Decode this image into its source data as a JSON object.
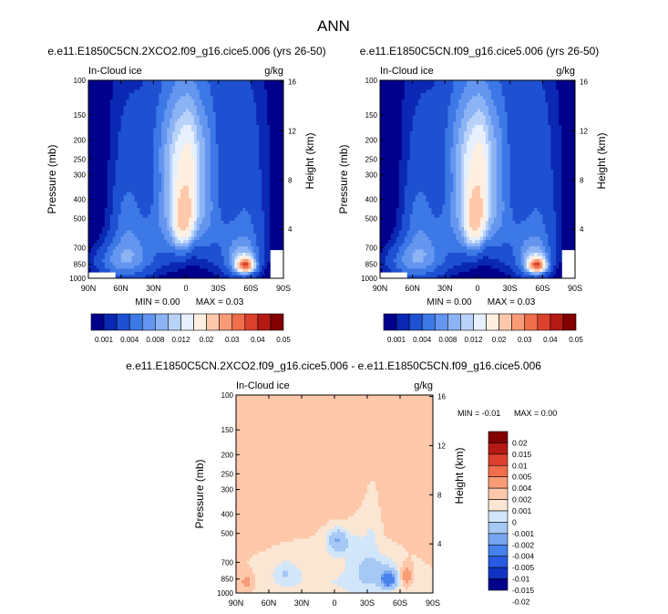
{
  "title": "ANN",
  "colors": {
    "seq": [
      "#00008c",
      "#0a28b4",
      "#1e50d2",
      "#3c78e6",
      "#6496f0",
      "#8cb4f5",
      "#b9d2fa",
      "#e6f0ff",
      "#fff0e1",
      "#ffc8aa",
      "#fa9b78",
      "#f06e4b",
      "#dc412d",
      "#b41914",
      "#820000"
    ],
    "diff": [
      "#00008c",
      "#0f32c3",
      "#285ae1",
      "#4682eb",
      "#78a5f0",
      "#a5c8f5",
      "#d2e6fa",
      "#fae6d2",
      "#ffc8aa",
      "#fa9b78",
      "#f06e4b",
      "#dc412d",
      "#b41914",
      "#820000"
    ]
  },
  "chart_data": [
    {
      "type": "heatmap",
      "title": "e.e11.E1850C5CN.2XCO2.f09_g16.cice5.006 (yrs 26-50)",
      "field_label": "In-Cloud ice",
      "units": "g/kg",
      "ylabel": "Pressure (mb)",
      "y2label": "Height (km)",
      "x_ticks": [
        "90N",
        "60N",
        "30N",
        "0",
        "30S",
        "60S",
        "90S"
      ],
      "y_ticks": [
        "100",
        "150",
        "200",
        "250",
        "300",
        "400",
        "500",
        "700",
        "850",
        "1000"
      ],
      "y2_ticks": [
        "16",
        "12",
        "8",
        "4"
      ],
      "min_text": "MIN =  0.00",
      "max_text": "MAX =  0.03",
      "colorbar_labels": [
        "0.001",
        "0.004",
        "0.008",
        "0.012",
        "0.02",
        "0.03",
        "0.04",
        "0.05"
      ],
      "levels": [
        0.001,
        0.002,
        0.004,
        0.006,
        0.008,
        0.01,
        0.012,
        0.015,
        0.02,
        0.025,
        0.03,
        0.035,
        0.04,
        0.05
      ],
      "features": [
        {
          "lat": 0,
          "p": 520,
          "amp": 0.012,
          "slat": 6,
          "sp": 110
        },
        {
          "lat": -3,
          "p": 330,
          "amp": 0.009,
          "slat": 5,
          "sp": 130
        },
        {
          "lat": 6,
          "p": 450,
          "amp": 0.009,
          "slat": 5,
          "sp": 170
        },
        {
          "lat": 15,
          "p": 420,
          "amp": 0.005,
          "slat": 8,
          "sp": 200
        },
        {
          "lat": -15,
          "p": 400,
          "amp": 0.005,
          "slat": 8,
          "sp": 190
        },
        {
          "lat": 2,
          "p": 220,
          "amp": 0.004,
          "slat": 15,
          "sp": 80
        },
        {
          "lat": 0,
          "p": 400,
          "amp": 0.003,
          "slat": 35,
          "sp": 260
        },
        {
          "lat": -55,
          "p": 860,
          "amp": 0.03,
          "slat": 5,
          "sp": 45
        },
        {
          "lat": -52,
          "p": 800,
          "amp": 0.008,
          "slat": 10,
          "sp": 120
        },
        {
          "lat": -58,
          "p": 500,
          "amp": 0.003,
          "slat": 12,
          "sp": 280
        },
        {
          "lat": 55,
          "p": 540,
          "amp": 0.004,
          "slat": 10,
          "sp": 230
        },
        {
          "lat": 65,
          "p": 820,
          "amp": 0.005,
          "slat": 14,
          "sp": 120
        },
        {
          "lat": 45,
          "p": 800,
          "amp": 0.003,
          "slat": 12,
          "sp": 140
        },
        {
          "lat": 30,
          "p": 650,
          "amp": 0.002,
          "slat": 12,
          "sp": 200
        },
        {
          "lat": -32,
          "p": 650,
          "amp": 0.002,
          "slat": 12,
          "sp": 200
        },
        {
          "lat": 0,
          "p": 150,
          "amp": 0.0015,
          "slat": 45,
          "sp": 80
        }
      ]
    },
    {
      "type": "heatmap",
      "title": "e.e11.E1850C5CN.f09_g16.cice5.006 (yrs 26-50)",
      "field_label": "In-Cloud ice",
      "units": "g/kg",
      "ylabel": "Pressure (mb)",
      "y2label": "Height (km)",
      "x_ticks": [
        "90N",
        "60N",
        "30N",
        "0",
        "30S",
        "60S",
        "90S"
      ],
      "y_ticks": [
        "100",
        "150",
        "200",
        "250",
        "300",
        "400",
        "500",
        "700",
        "850",
        "1000"
      ],
      "y2_ticks": [
        "16",
        "12",
        "8",
        "4"
      ],
      "min_text": "MIN =  0.00",
      "max_text": "MAX =  0.03",
      "colorbar_labels": [
        "0.001",
        "0.004",
        "0.008",
        "0.012",
        "0.02",
        "0.03",
        "0.04",
        "0.05"
      ],
      "levels": [
        0.001,
        0.002,
        0.004,
        0.006,
        0.008,
        0.01,
        0.012,
        0.015,
        0.02,
        0.025,
        0.03,
        0.035,
        0.04,
        0.05
      ],
      "features": [
        {
          "lat": 0,
          "p": 520,
          "amp": 0.012,
          "slat": 6,
          "sp": 110
        },
        {
          "lat": -3,
          "p": 330,
          "amp": 0.009,
          "slat": 5,
          "sp": 130
        },
        {
          "lat": 6,
          "p": 450,
          "amp": 0.009,
          "slat": 5,
          "sp": 170
        },
        {
          "lat": 15,
          "p": 420,
          "amp": 0.005,
          "slat": 8,
          "sp": 200
        },
        {
          "lat": -15,
          "p": 400,
          "amp": 0.005,
          "slat": 8,
          "sp": 190
        },
        {
          "lat": 2,
          "p": 220,
          "amp": 0.004,
          "slat": 15,
          "sp": 80
        },
        {
          "lat": 0,
          "p": 400,
          "amp": 0.003,
          "slat": 35,
          "sp": 260
        },
        {
          "lat": -55,
          "p": 860,
          "amp": 0.03,
          "slat": 5,
          "sp": 45
        },
        {
          "lat": -52,
          "p": 800,
          "amp": 0.008,
          "slat": 10,
          "sp": 120
        },
        {
          "lat": -58,
          "p": 500,
          "amp": 0.003,
          "slat": 12,
          "sp": 280
        },
        {
          "lat": 55,
          "p": 540,
          "amp": 0.004,
          "slat": 10,
          "sp": 230
        },
        {
          "lat": 65,
          "p": 820,
          "amp": 0.005,
          "slat": 14,
          "sp": 120
        },
        {
          "lat": 45,
          "p": 800,
          "amp": 0.003,
          "slat": 12,
          "sp": 140
        },
        {
          "lat": 30,
          "p": 650,
          "amp": 0.002,
          "slat": 12,
          "sp": 200
        },
        {
          "lat": -32,
          "p": 650,
          "amp": 0.002,
          "slat": 12,
          "sp": 200
        },
        {
          "lat": 0,
          "p": 150,
          "amp": 0.0015,
          "slat": 45,
          "sp": 80
        }
      ]
    },
    {
      "type": "heatmap",
      "title": "e.e11.E1850C5CN.2XCO2.f09_g16.cice5.006 - e.e11.E1850C5CN.f09_g16.cice5.006",
      "field_label": "In-Cloud ice",
      "units": "g/kg",
      "ylabel": "Pressure (mb)",
      "y2label": "Height (km)",
      "x_ticks": [
        "90N",
        "60N",
        "30N",
        "0",
        "30S",
        "60S",
        "90S"
      ],
      "y_ticks": [
        "100",
        "150",
        "200",
        "250",
        "300",
        "400",
        "500",
        "700",
        "850",
        "1000"
      ],
      "y2_ticks": [
        "16",
        "12",
        "8",
        "4"
      ],
      "min_text": "MIN =  -0.01",
      "max_text": "MAX =  0.00",
      "colorbar_labels": [
        "0.02",
        "0.015",
        "0.01",
        "0.005",
        "0.004",
        "0.002",
        "0.001",
        "0",
        "-0.001",
        "-0.002",
        "-0.004",
        "-0.005",
        "-0.01",
        "-0.015",
        "-0.02"
      ],
      "levels": [
        -0.02,
        -0.015,
        -0.01,
        -0.005,
        -0.004,
        -0.002,
        -0.001,
        0,
        0.001,
        0.002,
        0.004,
        0.005,
        0.01,
        0.015,
        0.02
      ],
      "baseline": 0.0004,
      "features": [
        {
          "lat": 0,
          "p": 880,
          "amp": -0.0014,
          "slat": 60,
          "sp": 230
        },
        {
          "lat": -5,
          "p": 560,
          "amp": -0.0022,
          "slat": 9,
          "sp": 60
        },
        {
          "lat": -2,
          "p": 530,
          "amp": -0.0022,
          "slat": 5,
          "sp": 40
        },
        {
          "lat": -45,
          "p": 800,
          "amp": -0.0022,
          "slat": 10,
          "sp": 100
        },
        {
          "lat": -50,
          "p": 860,
          "amp": -0.006,
          "slat": 5,
          "sp": 50
        },
        {
          "lat": 45,
          "p": 800,
          "amp": -0.0015,
          "slat": 8,
          "sp": 80
        },
        {
          "lat": -65,
          "p": 820,
          "amp": 0.0025,
          "slat": 4,
          "sp": 70
        },
        {
          "lat": 80,
          "p": 870,
          "amp": 0.0018,
          "slat": 4,
          "sp": 60
        },
        {
          "lat": -25,
          "p": 720,
          "amp": -0.0012,
          "slat": 8,
          "sp": 200
        },
        {
          "lat": -35,
          "p": 500,
          "amp": -0.0009,
          "slat": 5,
          "sp": 160
        }
      ]
    }
  ]
}
